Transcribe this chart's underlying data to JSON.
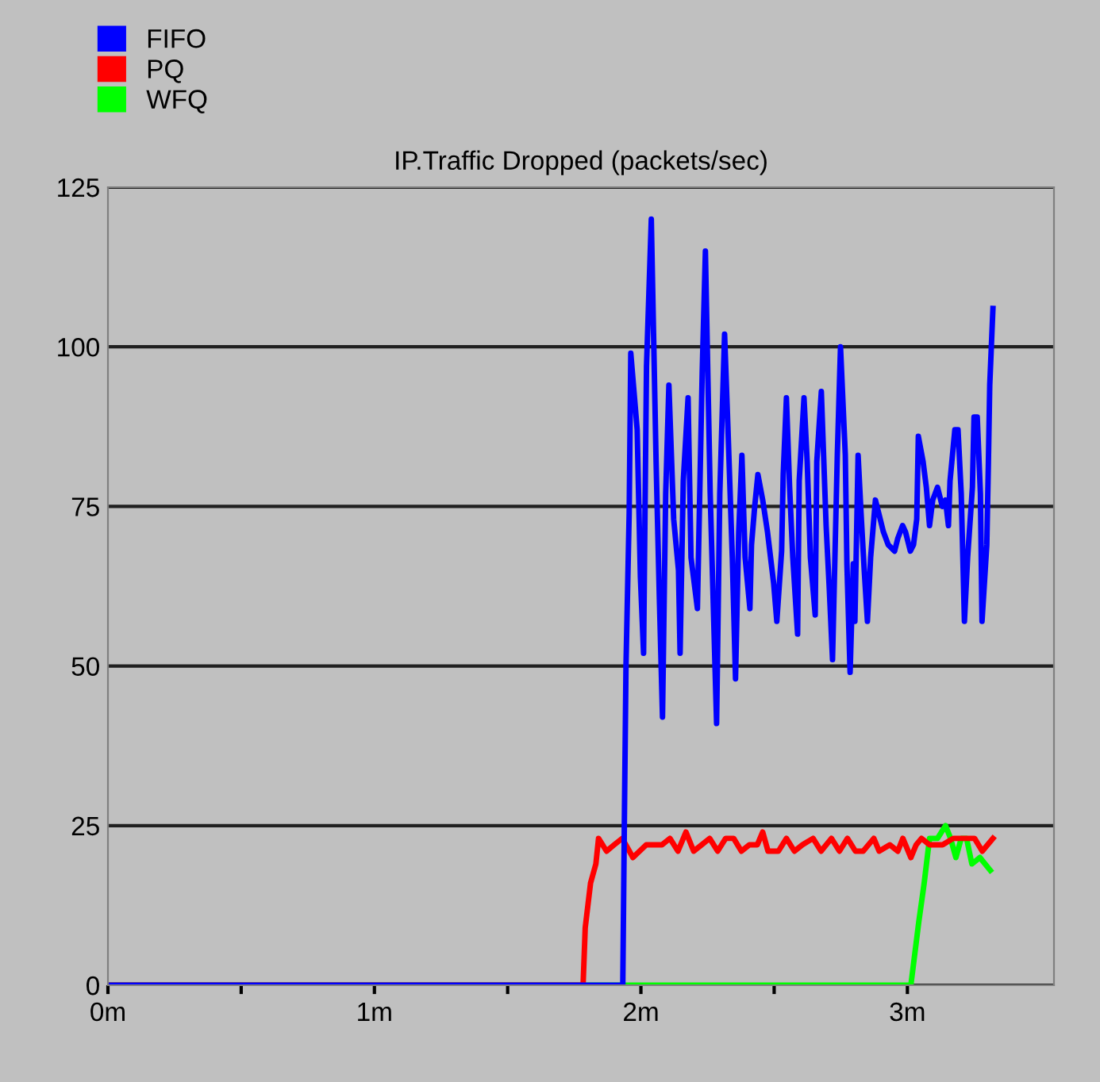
{
  "chart_data": {
    "type": "line",
    "title": "IP.Traffic Dropped (packets/sec)",
    "legend": "top left",
    "grid": "y",
    "marker": "none",
    "line_style": "solid",
    "xlim": [
      0,
      3.55
    ],
    "ylim": [
      0,
      125
    ],
    "xticks": [
      {
        "value": 0,
        "label": "0m"
      },
      {
        "value": 0.5,
        "label": null
      },
      {
        "value": 1,
        "label": "1m"
      },
      {
        "value": 1.5,
        "label": null
      },
      {
        "value": 2,
        "label": "2m"
      },
      {
        "value": 2.5,
        "label": null
      },
      {
        "value": 3,
        "label": "3m"
      }
    ],
    "yticks": [
      0,
      25,
      50,
      75,
      100,
      125
    ],
    "series": [
      {
        "name": "WFQ",
        "color": "#00ff00",
        "x": [
          0,
          3.013,
          3.043,
          3.063,
          3.083,
          3.113,
          3.143,
          3.162,
          3.182,
          3.202,
          3.222,
          3.242,
          3.272,
          3.311
        ],
        "values": [
          0,
          0,
          10,
          16,
          23,
          23,
          25,
          23,
          20,
          23,
          23,
          19,
          20,
          18
        ]
      },
      {
        "name": "PQ",
        "color": "#ff0000",
        "x": [
          0,
          1.783,
          1.791,
          1.811,
          1.831,
          1.841,
          1.871,
          1.9,
          1.93,
          1.97,
          2.02,
          2.05,
          2.079,
          2.109,
          2.139,
          2.169,
          2.198,
          2.228,
          2.258,
          2.288,
          2.318,
          2.348,
          2.377,
          2.407,
          2.437,
          2.457,
          2.477,
          2.516,
          2.546,
          2.576,
          2.606,
          2.646,
          2.676,
          2.715,
          2.745,
          2.775,
          2.805,
          2.834,
          2.874,
          2.894,
          2.934,
          2.964,
          2.983,
          3.013,
          3.033,
          3.053,
          3.083,
          3.132,
          3.172,
          3.212,
          3.252,
          3.281,
          3.321
        ],
        "values": [
          0,
          0,
          9,
          16,
          19,
          23,
          21,
          22,
          23,
          20,
          22,
          22,
          22,
          23,
          21,
          24,
          21,
          22,
          23,
          21,
          23,
          23,
          21,
          22,
          22,
          24,
          21,
          21,
          23,
          21,
          22,
          23,
          21,
          23,
          21,
          23,
          21,
          21,
          23,
          21,
          22,
          21,
          23,
          20,
          22,
          23,
          22,
          22,
          23,
          23,
          23,
          21,
          23
        ]
      },
      {
        "name": "FIFO",
        "color": "#0000ff",
        "x": [
          0,
          1.932,
          1.938,
          1.944,
          1.956,
          1.962,
          1.986,
          1.998,
          2.01,
          2.021,
          2.039,
          2.057,
          2.069,
          2.081,
          2.093,
          2.105,
          2.123,
          2.141,
          2.147,
          2.159,
          2.177,
          2.188,
          2.212,
          2.23,
          2.242,
          2.26,
          2.272,
          2.284,
          2.296,
          2.314,
          2.326,
          2.343,
          2.355,
          2.367,
          2.379,
          2.391,
          2.409,
          2.415,
          2.427,
          2.439,
          2.457,
          2.475,
          2.498,
          2.51,
          2.528,
          2.534,
          2.546,
          2.558,
          2.57,
          2.588,
          2.594,
          2.612,
          2.624,
          2.636,
          2.654,
          2.66,
          2.677,
          2.695,
          2.707,
          2.719,
          2.737,
          2.749,
          2.767,
          2.773,
          2.785,
          2.797,
          2.803,
          2.815,
          2.826,
          2.838,
          2.85,
          2.862,
          2.88,
          2.892,
          2.91,
          2.928,
          2.952,
          2.964,
          2.982,
          2.993,
          3.011,
          3.023,
          3.035,
          3.041,
          3.059,
          3.071,
          3.083,
          3.095,
          3.113,
          3.131,
          3.143,
          3.154,
          3.16,
          3.178,
          3.19,
          3.202,
          3.214,
          3.226,
          3.244,
          3.25,
          3.262,
          3.274,
          3.28,
          3.298,
          3.304,
          3.309,
          3.321
        ],
        "values": [
          0,
          0,
          26,
          50,
          74,
          99,
          87,
          64,
          52,
          97,
          120,
          82,
          61,
          42,
          77,
          94,
          73,
          65,
          52,
          79,
          92,
          67,
          59,
          96,
          115,
          77,
          59,
          41,
          77,
          102,
          88,
          67,
          48,
          71,
          83,
          67,
          59,
          69,
          75,
          80,
          76,
          71,
          63,
          57,
          68,
          80,
          92,
          78,
          67,
          55,
          79,
          92,
          82,
          67,
          58,
          82,
          93,
          72,
          62,
          51,
          83,
          100,
          83,
          66,
          49,
          66,
          57,
          83,
          74,
          65,
          57,
          67,
          76,
          74,
          71,
          69,
          68,
          70,
          72,
          71,
          68,
          69,
          73,
          86,
          82,
          78,
          72,
          76,
          78,
          75,
          76,
          72,
          79,
          87,
          87,
          77,
          57,
          67,
          78,
          89,
          89,
          77,
          57,
          69,
          82,
          94,
          106
        ]
      }
    ]
  }
}
